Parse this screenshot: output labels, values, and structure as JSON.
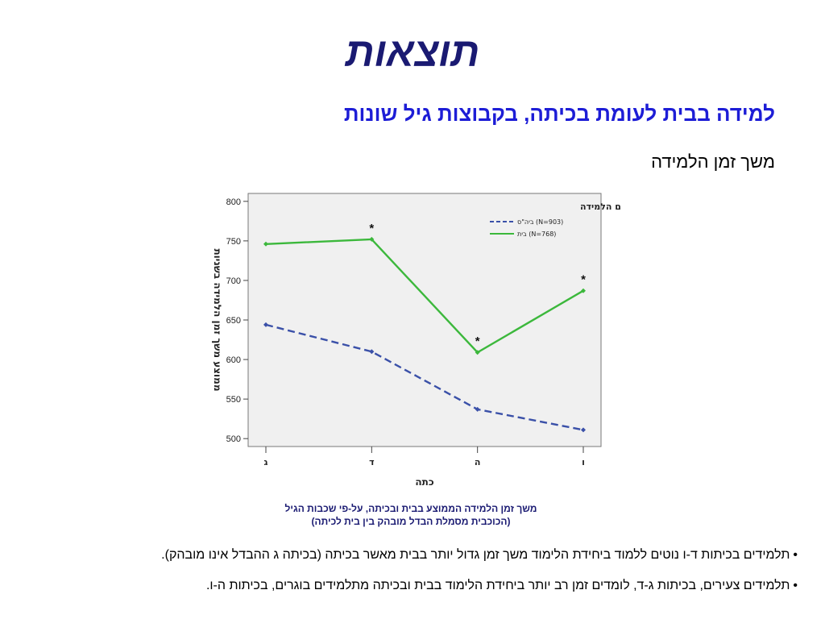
{
  "slide": {
    "title": "תוצאות",
    "subtitle": "למידה בבית לעומת בכיתה, בקבוצות גיל שונות",
    "section_label": "משך זמן הלמידה",
    "caption_line1": "משך זמן הלמידה הממוצע בבית ובכיתה, על-פי שכבות הגיל",
    "caption_line2": "(הכוכבית מסמלת הבדל מובהק בין בית לכיתה)",
    "bullets": [
      {
        "marker": "•",
        "text": "תלמידים בכיתות ד-ו נוטים ללמוד ביחידת הלימוד משך זמן גדול יותר בבית מאשר בכיתה (בכיתה ג ההבדל אינו מובהק)."
      },
      {
        "marker": "•",
        "text": "תלמידים צעירים, בכיתות ג-ד, לומדים זמן רב יותר ביחידת הלימוד בבית ובכיתה מתלמידים בוגרים, בכיתות ה-ו."
      }
    ]
  },
  "chart_data": {
    "type": "line",
    "categories": [
      "ג",
      "ד",
      "ה",
      "ו"
    ],
    "xlabel": "כתה",
    "ylabel": "ממוצע משך זמן הלמידה בשניות",
    "ylim": [
      490,
      810
    ],
    "yticks": [
      500,
      550,
      600,
      650,
      700,
      750,
      800
    ],
    "legend_title": "מיקום הלמידה",
    "legend_position": "top-right",
    "series": [
      {
        "name": "ביה\"ס (N=903)",
        "values": [
          644,
          610,
          537,
          511
        ],
        "color": "#3a50a8",
        "dashed": true
      },
      {
        "name": "בית (N=768)",
        "values": [
          746,
          752,
          609,
          687
        ],
        "color": "#3cb83c",
        "dashed": false
      }
    ],
    "annotations": [
      {
        "category_index": 1,
        "series_index": 1,
        "text": "*"
      },
      {
        "category_index": 2,
        "series_index": 1,
        "text": "*"
      },
      {
        "category_index": 3,
        "series_index": 1,
        "text": "*"
      }
    ]
  }
}
